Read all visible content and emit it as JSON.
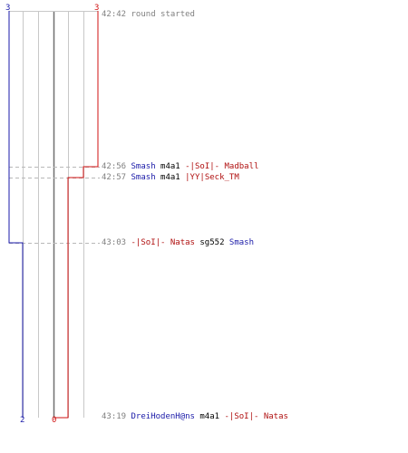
{
  "team_blue": {
    "color": "#1a1aa8",
    "start_count": "3",
    "end_count": "2"
  },
  "team_red": {
    "color": "#d01010",
    "start_count": "3",
    "end_count": "0"
  },
  "events": [
    {
      "time": "42:42",
      "message": "round started"
    },
    {
      "time": "42:56",
      "killer": "Smash",
      "killer_team": "blue",
      "weapon": "m4a1",
      "victim": "-|SoI|- Madball",
      "victim_team": "red"
    },
    {
      "time": "42:57",
      "killer": "Smash",
      "killer_team": "blue",
      "weapon": "m4a1",
      "victim": "|YY|Seck_TM",
      "victim_team": "red"
    },
    {
      "time": "43:03",
      "killer": "-|SoI|- Natas",
      "killer_team": "red",
      "weapon": "sg552",
      "victim": "Smash",
      "victim_team": "blue"
    },
    {
      "time": "43:19",
      "killer": "DreiHodenH@ns",
      "killer_team": "blue",
      "weapon": "m4a1",
      "victim": "-|SoI|- Natas",
      "victim_team": "red"
    }
  ]
}
